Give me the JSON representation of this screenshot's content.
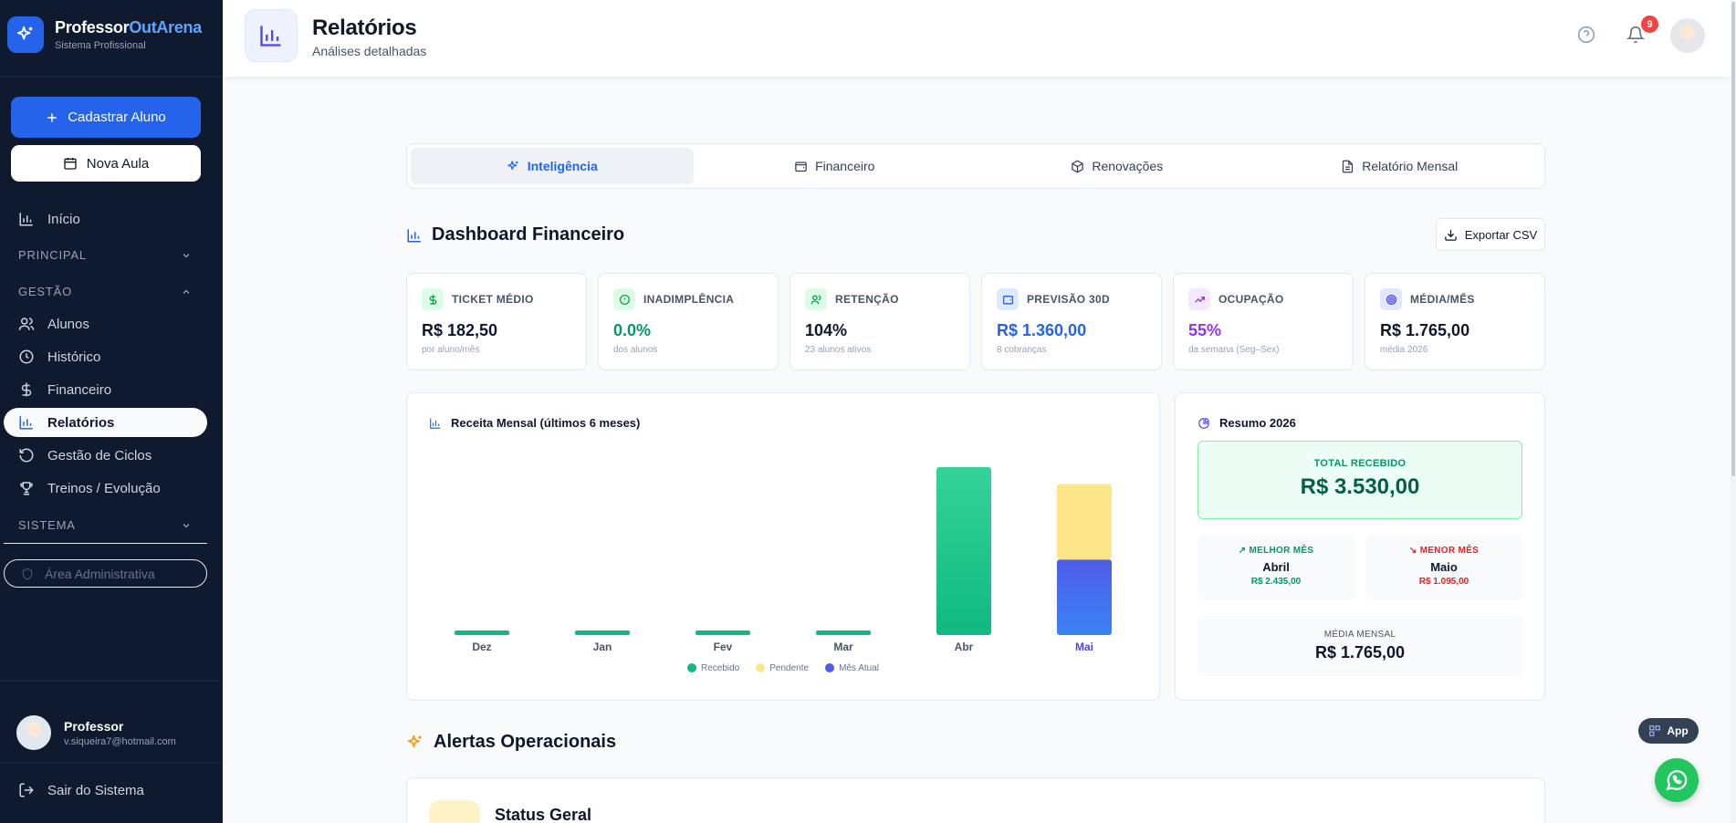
{
  "brand": {
    "name_main": "Professor",
    "name_accent": "OutArena",
    "subtitle": "Sistema Profissional"
  },
  "sidebar": {
    "primary_button": "Cadastrar Aluno",
    "secondary_button": "Nova Aula",
    "home": "Início",
    "sections": {
      "principal": "PRINCIPAL",
      "gestao": "GESTÃO",
      "sistema": "SISTEMA"
    },
    "items": [
      "Alunos",
      "Histórico",
      "Financeiro",
      "Relatórios",
      "Gestão de Ciclos",
      "Treinos / Evolução"
    ],
    "admin_placeholder": "Área Administrativa",
    "profile": {
      "name": "Professor",
      "email": "v.siqueira7@hotmail.com"
    },
    "logout": "Sair do Sistema"
  },
  "header": {
    "title": "Relatórios",
    "subtitle": "Análises detalhadas",
    "notification_count": "9"
  },
  "tabs": [
    "Inteligência",
    "Financeiro",
    "Renovações",
    "Relatório Mensal"
  ],
  "dashboard": {
    "title": "Dashboard Financeiro",
    "export_label": "Exportar CSV"
  },
  "kpis": [
    {
      "label": "TICKET MÉDIO",
      "value": "R$ 182,50",
      "sub": "por aluno/mês",
      "color": "#0f172a",
      "icon": "dollar-icon"
    },
    {
      "label": "INADIMPLÊNCIA",
      "value": "0.0%",
      "sub": "dos alunos",
      "color": "#059669",
      "icon": "alert-circle-icon"
    },
    {
      "label": "RETENÇÃO",
      "value": "104%",
      "sub": "23 alunos ativos",
      "color": "#0f172a",
      "icon": "users-icon"
    },
    {
      "label": "PREVISÃO 30D",
      "value": "R$ 1.360,00",
      "sub": "8 cobranças",
      "color": "#2563eb",
      "icon": "wallet-icon"
    },
    {
      "label": "OCUPAÇÃO",
      "value": "55%",
      "sub": "da semana (Seg–Sex)",
      "color": "#9333ea",
      "icon": "trending-up-icon"
    },
    {
      "label": "MÉDIA/MÊS",
      "value": "R$ 1.765,00",
      "sub": "média 2026",
      "color": "#0f172a",
      "icon": "target-icon"
    }
  ],
  "chart_data": {
    "type": "bar",
    "title": "Receita Mensal (últimos 6 meses)",
    "categories": [
      "Dez",
      "Jan",
      "Fev",
      "Mar",
      "Abr",
      "Mai"
    ],
    "highlight_category": "Mai",
    "series": [
      {
        "name": "Recebido",
        "color": "#10b981",
        "values": [
          0,
          0,
          0,
          0,
          2435,
          0
        ]
      },
      {
        "name": "Pendente",
        "color": "#fde68a",
        "values": [
          0,
          0,
          0,
          0,
          0,
          1095
        ]
      },
      {
        "name": "Mês Atual",
        "color": "#4f5de8",
        "values": [
          0,
          0,
          0,
          0,
          0,
          1095
        ]
      }
    ],
    "ylim": [
      0,
      2435
    ],
    "grid": false,
    "legend_position": "bottom"
  },
  "resumo": {
    "title": "Resumo 2026",
    "total_label": "TOTAL RECEBIDO",
    "total_value": "R$ 3.530,00",
    "best": {
      "label": "MELHOR MÊS",
      "month": "Abril",
      "value": "R$ 2.435,00"
    },
    "worst": {
      "label": "MENOR MÊS",
      "month": "Maio",
      "value": "R$ 1.095,00"
    },
    "average_label": "MÉDIA MENSAL",
    "average_value": "R$ 1.765,00"
  },
  "alerts": {
    "title": "Alertas Operacionais",
    "status_title": "Status Geral"
  },
  "floating": {
    "app_label": "App"
  }
}
